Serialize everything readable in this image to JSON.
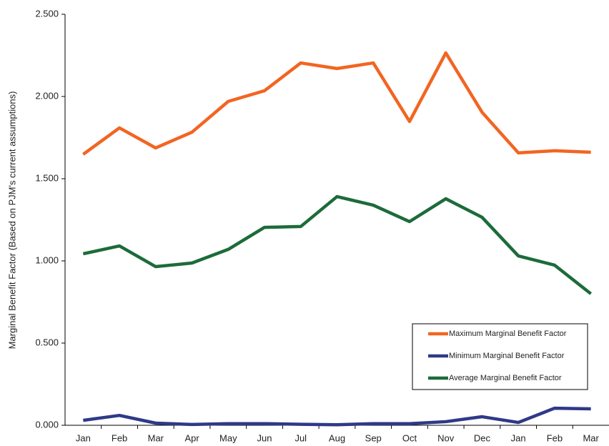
{
  "chart_data": {
    "type": "line",
    "y_label": "Marginal Benefit Factor (Based on PJM's current assumptions)",
    "categories": [
      "Jan",
      "Feb",
      "Mar",
      "Apr",
      "May",
      "Jun",
      "Jul",
      "Aug",
      "Sep",
      "Oct",
      "Nov",
      "Dec",
      "Jan",
      "Feb",
      "Mar"
    ],
    "series": [
      {
        "name": "Maximum Marginal Benefit Factor",
        "color": "#f26522",
        "values": [
          1.648,
          1.809,
          1.687,
          1.783,
          1.97,
          2.035,
          2.204,
          2.17,
          2.204,
          1.848,
          2.265,
          1.904,
          1.657,
          1.67,
          1.661
        ]
      },
      {
        "name": "Minimum Marginal Benefit Factor",
        "color": "#2e3a87",
        "values": [
          0.03,
          0.06,
          0.013,
          0.005,
          0.01,
          0.01,
          0.006,
          0.003,
          0.01,
          0.01,
          0.022,
          0.052,
          0.017,
          0.104,
          0.1
        ]
      },
      {
        "name": "Average Marginal Benefit Factor",
        "color": "#1d6b3a",
        "values": [
          1.043,
          1.091,
          0.965,
          0.987,
          1.07,
          1.204,
          1.209,
          1.391,
          1.339,
          1.239,
          1.378,
          1.265,
          1.03,
          0.974,
          0.8
        ]
      }
    ],
    "ylim": [
      0,
      2.5
    ],
    "yticks": [
      {
        "value": 0,
        "label": "0.000"
      },
      {
        "value": 0.5,
        "label": "0.500"
      },
      {
        "value": 1,
        "label": "1.000"
      },
      {
        "value": 1.5,
        "label": "1.500"
      },
      {
        "value": 2,
        "label": "2.000"
      },
      {
        "value": 2.5,
        "label": "2.500"
      }
    ],
    "legend": "lower right",
    "grid": false
  }
}
